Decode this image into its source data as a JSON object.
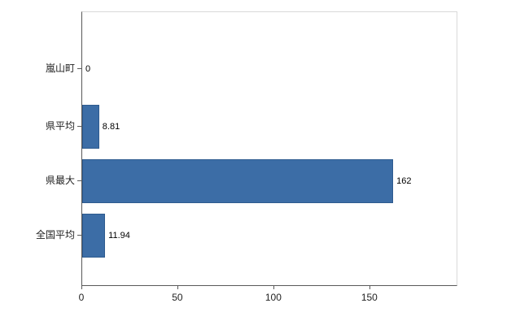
{
  "chart_data": {
    "type": "bar",
    "orientation": "horizontal",
    "title": "",
    "xlabel": "",
    "ylabel": "",
    "categories": [
      "嵐山町",
      "県平均",
      "県最大",
      "全国平均"
    ],
    "values": [
      0,
      8.81,
      162,
      11.94
    ],
    "value_labels": [
      "0",
      "8.81",
      "162",
      "11.94"
    ],
    "xlim": [
      0,
      195
    ],
    "x_ticks": [
      0,
      50,
      100,
      150
    ],
    "x_tick_labels": [
      "0",
      "50",
      "100",
      "150"
    ],
    "grid": false,
    "legend_position": "none",
    "bar_color": "#3c6da6",
    "bar_border_color": "#2e5b8f",
    "axis_color": "#595959",
    "frame_color": "#d9d9d9",
    "background_color": "#ffffff"
  }
}
